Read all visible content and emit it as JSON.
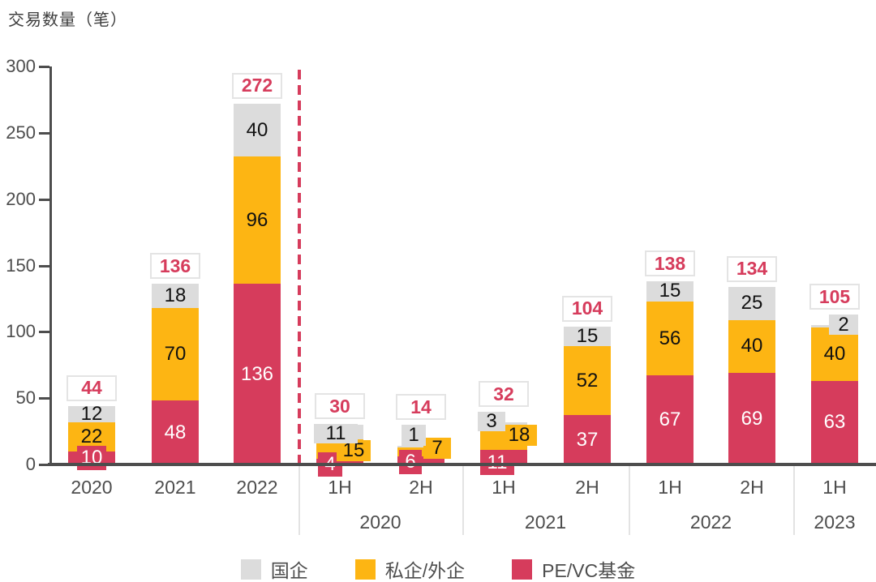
{
  "title": "交易数量（笔）",
  "colors": {
    "soe": "#dcdcdc",
    "private_foreign": "#fdb513",
    "pevc_fund": "#d63c5c",
    "total_text": "#d63c5c",
    "axis": "#4d4d4d",
    "badge_border": "#e4e4e4",
    "group_separator": "#e3e3e3",
    "dashed_divider": "#d63c5c"
  },
  "legend": {
    "items": [
      {
        "label": "国企",
        "color": "#dcdcdc"
      },
      {
        "label": "私企/外企",
        "color": "#fdb513"
      },
      {
        "label": "PE/VC基金",
        "color": "#d63c5c"
      }
    ]
  },
  "chart_data": {
    "type": "bar",
    "stacked": true,
    "title": "交易数量（笔）",
    "ylabel": "交易数量（笔）",
    "ylim": [
      0,
      300
    ],
    "y_ticks": [
      0,
      50,
      100,
      150,
      200,
      250,
      300
    ],
    "grid": false,
    "legend_position": "bottom",
    "series_names": [
      "国企",
      "私企/外企",
      "PE/VC基金"
    ],
    "series_keys": [
      "soe",
      "private-foreign",
      "pevc-fund"
    ],
    "series_colors_list": [
      "#dcdcdc",
      "#fdb513",
      "#d63c5c"
    ],
    "stack_order_bottom_to_top": [
      "PE/VC基金",
      "私企/外企",
      "国企"
    ],
    "annual": {
      "categories": [
        "2020",
        "2021",
        "2022"
      ],
      "series": [
        {
          "name": "国企",
          "values": [
            12,
            18,
            40
          ]
        },
        {
          "name": "私企/外企",
          "values": [
            22,
            70,
            96
          ]
        },
        {
          "name": "PE/VC基金",
          "values": [
            10,
            48,
            136
          ]
        }
      ],
      "totals": [
        44,
        136,
        272
      ]
    },
    "half_year": {
      "categories": [
        "1H 2020",
        "2H 2020",
        "1H 2021",
        "2H 2021",
        "1H 2022",
        "2H 2022",
        "1H 2023"
      ],
      "bar_labels": [
        "1H",
        "2H",
        "1H",
        "2H",
        "1H",
        "2H",
        "1H"
      ],
      "series": [
        {
          "name": "国企",
          "values": [
            11,
            1,
            3,
            15,
            15,
            25,
            2
          ]
        },
        {
          "name": "私企/外企",
          "values": [
            15,
            7,
            18,
            52,
            56,
            40,
            40
          ]
        },
        {
          "name": "PE/VC基金",
          "values": [
            4,
            6,
            11,
            37,
            67,
            69,
            63
          ]
        }
      ],
      "totals": [
        30,
        14,
        32,
        104,
        138,
        134,
        105
      ]
    },
    "year_groups": [
      {
        "label": "2020",
        "bar_indices": [
          3,
          4
        ]
      },
      {
        "label": "2021",
        "bar_indices": [
          5,
          6
        ]
      },
      {
        "label": "2022",
        "bar_indices": [
          7,
          8
        ]
      },
      {
        "label": "2023",
        "bar_indices": [
          9
        ]
      }
    ]
  }
}
